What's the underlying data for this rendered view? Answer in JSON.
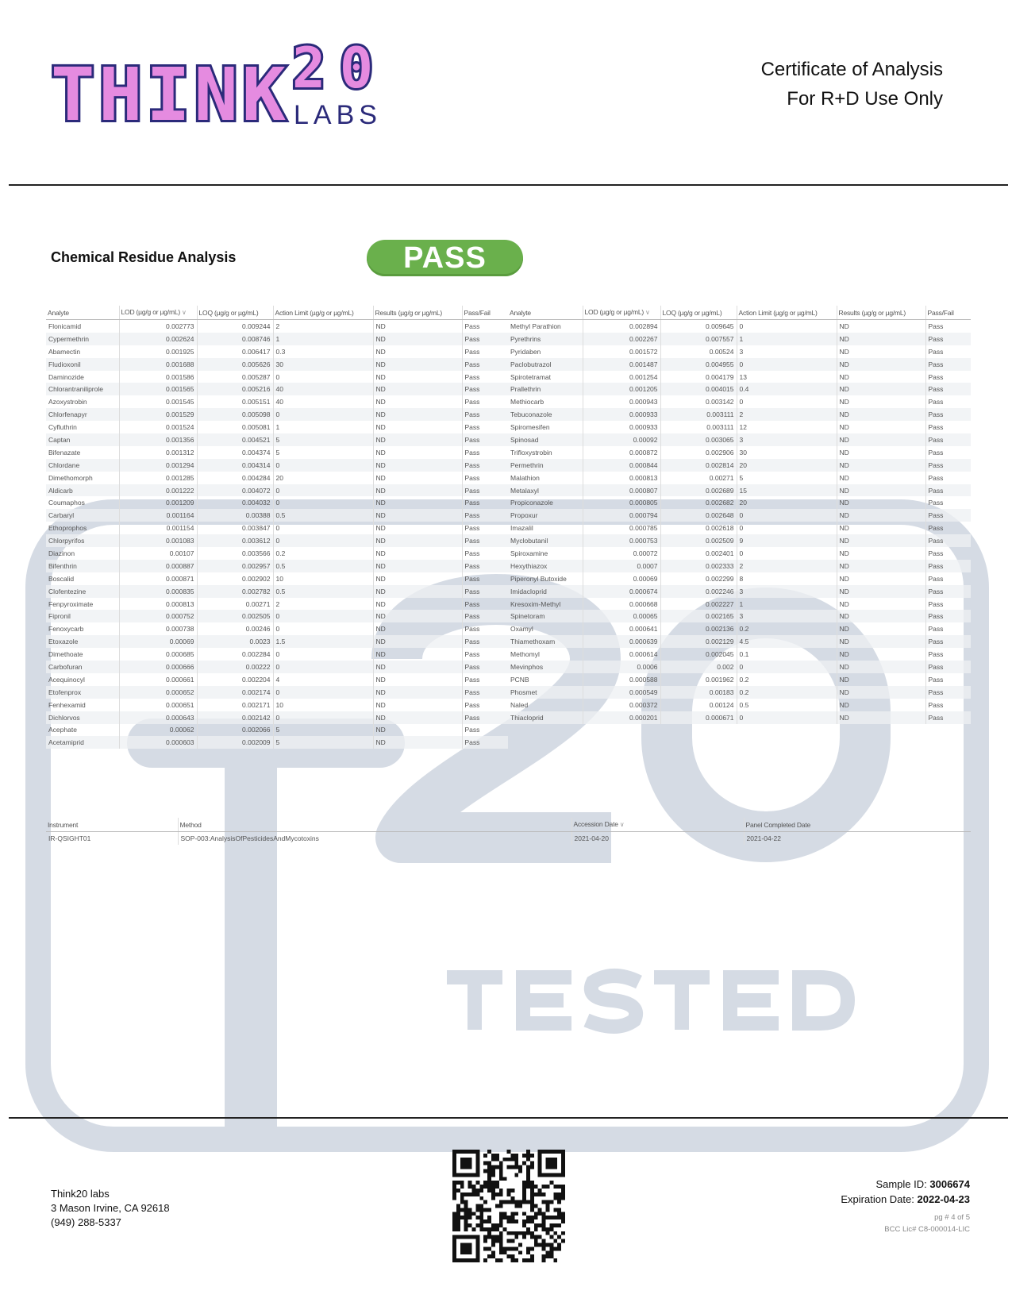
{
  "logo": {
    "text": "THINK",
    "number": "20",
    "sub": "LABS",
    "colors": {
      "navy": "#2b2a7a",
      "pink": "#e58be0",
      "purple": "#6a3fb0"
    }
  },
  "header": {
    "line1": "Certificate of Analysis",
    "line2": "For R+D Use Only"
  },
  "section": {
    "title": "Chemical Residue Analysis",
    "status": "PASS",
    "status_color": "#6ab04c"
  },
  "columns": [
    "Analyte",
    "LOD (µg/g or µg/mL)",
    "LOQ (µg/g or µg/mL)",
    "Action Limit (µg/g or µg/mL)",
    "Results (µg/g or µg/mL)",
    "Pass/Fail"
  ],
  "left_rows": [
    [
      "Flonicamid",
      "0.002773",
      "0.009244",
      "2",
      "ND",
      "Pass"
    ],
    [
      "Cypermethrin",
      "0.002624",
      "0.008746",
      "1",
      "ND",
      "Pass"
    ],
    [
      "Abamectin",
      "0.001925",
      "0.006417",
      "0.3",
      "ND",
      "Pass"
    ],
    [
      "Fludioxonil",
      "0.001688",
      "0.005626",
      "30",
      "ND",
      "Pass"
    ],
    [
      "Daminozide",
      "0.001586",
      "0.005287",
      "0",
      "ND",
      "Pass"
    ],
    [
      "Chlorantraniliprole",
      "0.001565",
      "0.005216",
      "40",
      "ND",
      "Pass"
    ],
    [
      "Azoxystrobin",
      "0.001545",
      "0.005151",
      "40",
      "ND",
      "Pass"
    ],
    [
      "Chlorfenapyr",
      "0.001529",
      "0.005098",
      "0",
      "ND",
      "Pass"
    ],
    [
      "Cyfluthrin",
      "0.001524",
      "0.005081",
      "1",
      "ND",
      "Pass"
    ],
    [
      "Captan",
      "0.001356",
      "0.004521",
      "5",
      "ND",
      "Pass"
    ],
    [
      "Bifenazate",
      "0.001312",
      "0.004374",
      "5",
      "ND",
      "Pass"
    ],
    [
      "Chlordane",
      "0.001294",
      "0.004314",
      "0",
      "ND",
      "Pass"
    ],
    [
      "Dimethomorph",
      "0.001285",
      "0.004284",
      "20",
      "ND",
      "Pass"
    ],
    [
      "Aldicarb",
      "0.001222",
      "0.004072",
      "0",
      "ND",
      "Pass"
    ],
    [
      "Coumaphos",
      "0.001209",
      "0.004032",
      "0",
      "ND",
      "Pass"
    ],
    [
      "Carbaryl",
      "0.001164",
      "0.00388",
      "0.5",
      "ND",
      "Pass"
    ],
    [
      "Ethoprophos",
      "0.001154",
      "0.003847",
      "0",
      "ND",
      "Pass"
    ],
    [
      "Chlorpyrifos",
      "0.001083",
      "0.003612",
      "0",
      "ND",
      "Pass"
    ],
    [
      "Diazinon",
      "0.00107",
      "0.003566",
      "0.2",
      "ND",
      "Pass"
    ],
    [
      "Bifenthrin",
      "0.000887",
      "0.002957",
      "0.5",
      "ND",
      "Pass"
    ],
    [
      "Boscalid",
      "0.000871",
      "0.002902",
      "10",
      "ND",
      "Pass"
    ],
    [
      "Clofentezine",
      "0.000835",
      "0.002782",
      "0.5",
      "ND",
      "Pass"
    ],
    [
      "Fenpyroximate",
      "0.000813",
      "0.00271",
      "2",
      "ND",
      "Pass"
    ],
    [
      "Fipronil",
      "0.000752",
      "0.002505",
      "0",
      "ND",
      "Pass"
    ],
    [
      "Fenoxycarb",
      "0.000738",
      "0.00246",
      "0",
      "ND",
      "Pass"
    ],
    [
      "Etoxazole",
      "0.00069",
      "0.0023",
      "1.5",
      "ND",
      "Pass"
    ],
    [
      "Dimethoate",
      "0.000685",
      "0.002284",
      "0",
      "ND",
      "Pass"
    ],
    [
      "Carbofuran",
      "0.000666",
      "0.00222",
      "0",
      "ND",
      "Pass"
    ],
    [
      "Acequinocyl",
      "0.000661",
      "0.002204",
      "4",
      "ND",
      "Pass"
    ],
    [
      "Etofenprox",
      "0.000652",
      "0.002174",
      "0",
      "ND",
      "Pass"
    ],
    [
      "Fenhexamid",
      "0.000651",
      "0.002171",
      "10",
      "ND",
      "Pass"
    ],
    [
      "Dichlorvos",
      "0.000643",
      "0.002142",
      "0",
      "ND",
      "Pass"
    ],
    [
      "Acephate",
      "0.00062",
      "0.002066",
      "5",
      "ND",
      "Pass"
    ],
    [
      "Acetamiprid",
      "0.000603",
      "0.002009",
      "5",
      "ND",
      "Pass"
    ]
  ],
  "right_rows": [
    [
      "Methyl Parathion",
      "0.002894",
      "0.009645",
      "0",
      "ND",
      "Pass"
    ],
    [
      "Pyrethrins",
      "0.002267",
      "0.007557",
      "1",
      "ND",
      "Pass"
    ],
    [
      "Pyridaben",
      "0.001572",
      "0.00524",
      "3",
      "ND",
      "Pass"
    ],
    [
      "Paclobutrazol",
      "0.001487",
      "0.004955",
      "0",
      "ND",
      "Pass"
    ],
    [
      "Spirotetramat",
      "0.001254",
      "0.004179",
      "13",
      "ND",
      "Pass"
    ],
    [
      "Prallethrin",
      "0.001205",
      "0.004015",
      "0.4",
      "ND",
      "Pass"
    ],
    [
      "Methiocarb",
      "0.000943",
      "0.003142",
      "0",
      "ND",
      "Pass"
    ],
    [
      "Tebuconazole",
      "0.000933",
      "0.003111",
      "2",
      "ND",
      "Pass"
    ],
    [
      "Spiromesifen",
      "0.000933",
      "0.003111",
      "12",
      "ND",
      "Pass"
    ],
    [
      "Spinosad",
      "0.00092",
      "0.003065",
      "3",
      "ND",
      "Pass"
    ],
    [
      "Trifloxystrobin",
      "0.000872",
      "0.002906",
      "30",
      "ND",
      "Pass"
    ],
    [
      "Permethrin",
      "0.000844",
      "0.002814",
      "20",
      "ND",
      "Pass"
    ],
    [
      "Malathion",
      "0.000813",
      "0.00271",
      "5",
      "ND",
      "Pass"
    ],
    [
      "Metalaxyl",
      "0.000807",
      "0.002689",
      "15",
      "ND",
      "Pass"
    ],
    [
      "Propiconazole",
      "0.000805",
      "0.002682",
      "20",
      "ND",
      "Pass"
    ],
    [
      "Propoxur",
      "0.000794",
      "0.002648",
      "0",
      "ND",
      "Pass"
    ],
    [
      "Imazalil",
      "0.000785",
      "0.002618",
      "0",
      "ND",
      "Pass"
    ],
    [
      "Myclobutanil",
      "0.000753",
      "0.002509",
      "9",
      "ND",
      "Pass"
    ],
    [
      "Spiroxamine",
      "0.00072",
      "0.002401",
      "0",
      "ND",
      "Pass"
    ],
    [
      "Hexythiazox",
      "0.0007",
      "0.002333",
      "2",
      "ND",
      "Pass"
    ],
    [
      "Piperonyl Butoxide",
      "0.00069",
      "0.002299",
      "8",
      "ND",
      "Pass"
    ],
    [
      "Imidacloprid",
      "0.000674",
      "0.002246",
      "3",
      "ND",
      "Pass"
    ],
    [
      "Kresoxim-Methyl",
      "0.000668",
      "0.002227",
      "1",
      "ND",
      "Pass"
    ],
    [
      "Spinetoram",
      "0.00065",
      "0.002165",
      "3",
      "ND",
      "Pass"
    ],
    [
      "Oxamyl",
      "0.000641",
      "0.002136",
      "0.2",
      "ND",
      "Pass"
    ],
    [
      "Thiamethoxam",
      "0.000639",
      "0.002129",
      "4.5",
      "ND",
      "Pass"
    ],
    [
      "Methomyl",
      "0.000614",
      "0.002045",
      "0.1",
      "ND",
      "Pass"
    ],
    [
      "Mevinphos",
      "0.0006",
      "0.002",
      "0",
      "ND",
      "Pass"
    ],
    [
      "PCNB",
      "0.000588",
      "0.001962",
      "0.2",
      "ND",
      "Pass"
    ],
    [
      "Phosmet",
      "0.000549",
      "0.00183",
      "0.2",
      "ND",
      "Pass"
    ],
    [
      "Naled",
      "0.000372",
      "0.00124",
      "0.5",
      "ND",
      "Pass"
    ],
    [
      "Thiacloprid",
      "0.000201",
      "0.000671",
      "0",
      "ND",
      "Pass"
    ]
  ],
  "sort_icon": "chevron-down-icon",
  "instrument_table": {
    "columns": [
      "Instrument",
      "Method",
      "Accession Date",
      "Panel Completed Date"
    ],
    "row": [
      "IR-QSIGHT01",
      "SOP-003:AnalysisOfPesticidesAndMycotoxins",
      "2021-04-20",
      "2021-04-22"
    ]
  },
  "watermark": {
    "mark": "T20",
    "text": "TESTED",
    "color": "#d5dbe4"
  },
  "footer": {
    "company": "Think20 labs",
    "address": "3 Mason Irvine, CA 92618",
    "phone": "(949) 288-5337",
    "sample_id_label": "Sample ID:",
    "sample_id": "3006674",
    "expiration_label": "Expiration Date:",
    "expiration_date": "2022-04-23",
    "page": "pg # 4 of 5",
    "license": "BCC Lic# C8-000014-LIC"
  }
}
